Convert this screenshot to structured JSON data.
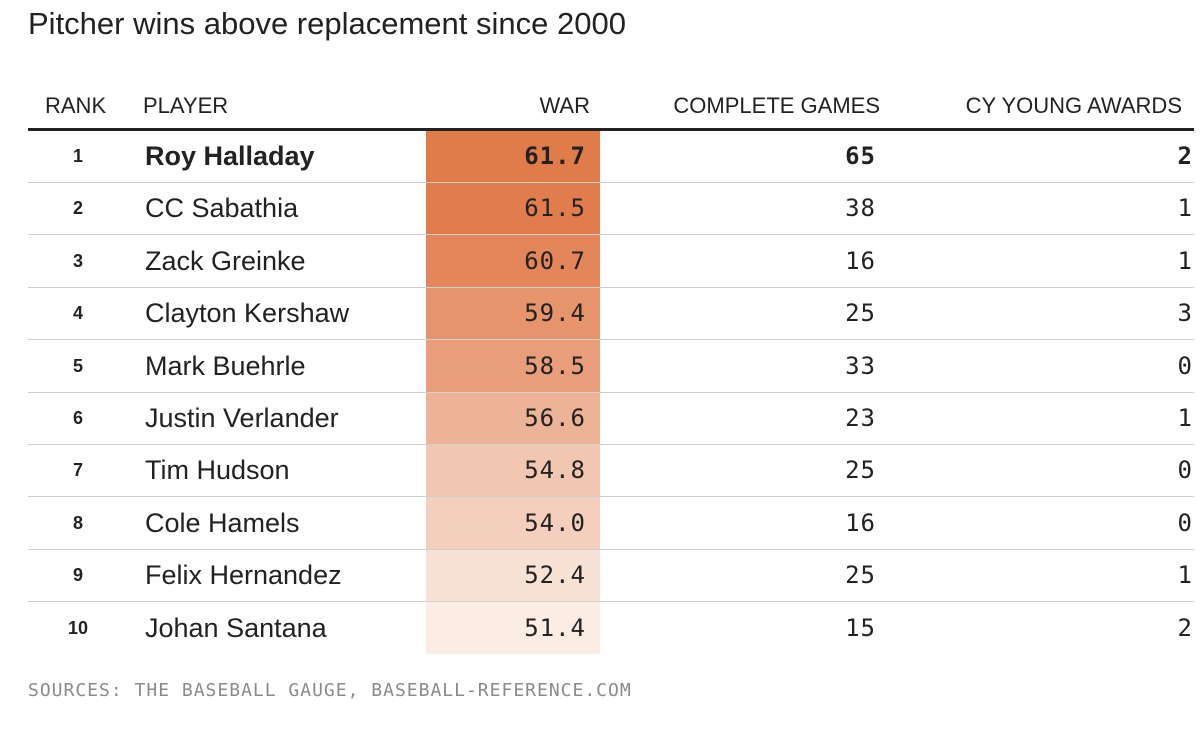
{
  "title": "Pitcher wins above replacement since 2000",
  "source": "SOURCES: THE BASEBALL GAUGE, BASEBALL-REFERENCE.COM",
  "colors": {
    "war_scale_high": "#e07b4a",
    "war_scale_low": "#fbece4",
    "header_rule": "#222222",
    "row_rule": "#cfcfcf"
  },
  "chart_data": {
    "type": "table",
    "columns": [
      "RANK",
      "PLAYER",
      "WAR",
      "COMPLETE GAMES",
      "CY YOUNG AWARDS"
    ],
    "rows": [
      {
        "rank": "1",
        "player": "Roy Halladay",
        "war": "61.7",
        "cg": "65",
        "cy": "2",
        "bold": true
      },
      {
        "rank": "2",
        "player": "CC Sabathia",
        "war": "61.5",
        "cg": "38",
        "cy": "1"
      },
      {
        "rank": "3",
        "player": "Zack Greinke",
        "war": "60.7",
        "cg": "16",
        "cy": "1"
      },
      {
        "rank": "4",
        "player": "Clayton Kershaw",
        "war": "59.4",
        "cg": "25",
        "cy": "3"
      },
      {
        "rank": "5",
        "player": "Mark Buehrle",
        "war": "58.5",
        "cg": "33",
        "cy": "0"
      },
      {
        "rank": "6",
        "player": "Justin Verlander",
        "war": "56.6",
        "cg": "23",
        "cy": "1"
      },
      {
        "rank": "7",
        "player": "Tim Hudson",
        "war": "54.8",
        "cg": "25",
        "cy": "0"
      },
      {
        "rank": "8",
        "player": "Cole Hamels",
        "war": "54.0",
        "cg": "16",
        "cy": "0"
      },
      {
        "rank": "9",
        "player": "Felix Hernandez",
        "war": "52.4",
        "cg": "25",
        "cy": "1"
      },
      {
        "rank": "10",
        "player": "Johan Santana",
        "war": "51.4",
        "cg": "15",
        "cy": "2"
      }
    ]
  }
}
